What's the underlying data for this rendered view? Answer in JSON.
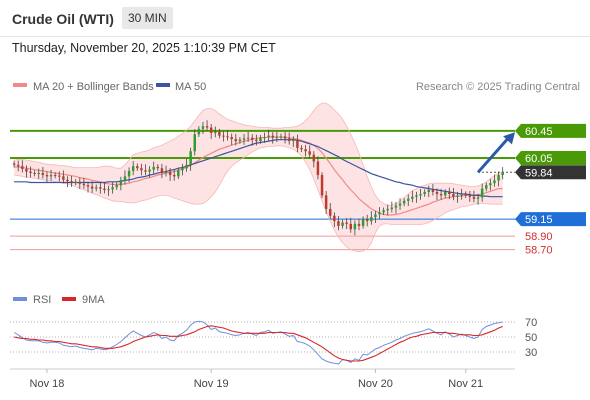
{
  "header": {
    "title": "Crude Oil (WTI)",
    "interval": "30 MIN",
    "datetime": "Thursday, November 20, 2025 1:10:39 PM CET"
  },
  "legend": {
    "ma20_bb": "MA 20 + Bollinger Bands",
    "ma50": "MA 50",
    "credit": "Research © 2025 Trading Central",
    "rsi": "RSI",
    "rsi_ma": "9MA"
  },
  "colors": {
    "bull": "#2e9b2e",
    "bear": "#c0392b",
    "ma20": "#f08a8a",
    "ma50": "#3b55a0",
    "band_fill": "#fde3e3",
    "resistance": "#4a9a08",
    "pivot": "#1f6fd6",
    "support": "#f29a9a",
    "support_text": "#d03030",
    "last_price_bg": "#333333",
    "arrow": "#2a5aa8",
    "rsi_line": "#6f8fd8",
    "rsi_ma_line": "#d62828"
  },
  "chart_data": [
    {
      "type": "candlestick",
      "ylim": [
        58.4,
        60.95
      ],
      "xlim": [
        -1,
        122
      ],
      "grid": false,
      "x_ticks": [
        {
          "label": "Nov 18",
          "index": 8
        },
        {
          "label": "Nov 19",
          "index": 48
        },
        {
          "label": "Nov 20",
          "index": 88
        },
        {
          "label": "Nov 21",
          "index": 110
        }
      ],
      "close": [
        59.95,
        59.93,
        59.89,
        59.85,
        59.83,
        59.82,
        59.83,
        59.8,
        59.78,
        59.8,
        59.79,
        59.78,
        59.73,
        59.71,
        59.69,
        59.7,
        59.67,
        59.65,
        59.63,
        59.6,
        59.62,
        59.6,
        59.58,
        59.59,
        59.62,
        59.65,
        59.71,
        59.78,
        59.86,
        59.93,
        59.9,
        59.87,
        59.85,
        59.88,
        59.92,
        59.9,
        59.83,
        59.85,
        59.8,
        59.78,
        59.87,
        59.9,
        59.95,
        60.15,
        60.4,
        60.48,
        60.52,
        60.5,
        60.42,
        60.44,
        60.38,
        60.37,
        60.36,
        60.33,
        60.3,
        60.32,
        60.34,
        60.35,
        60.32,
        60.3,
        60.35,
        60.36,
        60.38,
        60.35,
        60.36,
        60.37,
        60.34,
        60.3,
        60.32,
        60.2,
        60.18,
        60.15,
        60.1,
        60.0,
        59.8,
        59.5,
        59.3,
        59.2,
        59.12,
        59.05,
        59.1,
        59.08,
        59.0,
        59.08,
        59.05,
        59.15,
        59.12,
        59.18,
        59.22,
        59.25,
        59.28,
        59.3,
        59.32,
        59.35,
        59.38,
        59.42,
        59.45,
        59.48,
        59.5,
        59.52,
        59.55,
        59.58,
        59.55,
        59.52,
        59.5,
        59.55,
        59.52,
        59.48,
        59.5,
        59.52,
        59.5,
        59.48,
        59.45,
        59.47,
        59.6,
        59.65,
        59.68,
        59.72,
        59.8,
        59.84
      ],
      "ma20": [
        59.92,
        59.92,
        59.91,
        59.9,
        59.89,
        59.88,
        59.87,
        59.86,
        59.85,
        59.84,
        59.83,
        59.82,
        59.81,
        59.8,
        59.79,
        59.78,
        59.76,
        59.75,
        59.74,
        59.72,
        59.71,
        59.7,
        59.68,
        59.67,
        59.66,
        59.66,
        59.66,
        59.67,
        59.68,
        59.7,
        59.71,
        59.73,
        59.75,
        59.76,
        59.78,
        59.8,
        59.81,
        59.83,
        59.84,
        59.85,
        59.87,
        59.89,
        59.91,
        59.94,
        59.98,
        60.02,
        60.06,
        60.09,
        60.12,
        60.15,
        60.18,
        60.2,
        60.22,
        60.24,
        60.26,
        60.28,
        60.3,
        60.31,
        60.33,
        60.34,
        60.35,
        60.35,
        60.36,
        60.36,
        60.36,
        60.36,
        60.35,
        60.35,
        60.34,
        60.33,
        60.31,
        60.29,
        60.27,
        60.24,
        60.19,
        60.13,
        60.05,
        59.97,
        59.88,
        59.8,
        59.73,
        59.65,
        59.58,
        59.52,
        59.45,
        59.4,
        59.35,
        59.3,
        59.27,
        59.24,
        59.22,
        59.21,
        59.21,
        59.22,
        59.23,
        59.25,
        59.27,
        59.29,
        59.31,
        59.33,
        59.35,
        59.37,
        59.4,
        59.42,
        59.44,
        59.46,
        59.47,
        59.48,
        59.49,
        59.49,
        59.5,
        59.5,
        59.5,
        59.51,
        59.52,
        59.54,
        59.56,
        59.58,
        59.6,
        59.6
      ],
      "bb_upper": [
        60.02,
        60.03,
        60.03,
        60.02,
        60.01,
        60.0,
        59.99,
        59.97,
        59.96,
        59.95,
        59.95,
        59.94,
        59.94,
        59.93,
        59.92,
        59.91,
        59.91,
        59.91,
        59.91,
        59.91,
        59.91,
        59.92,
        59.93,
        59.93,
        59.92,
        59.9,
        59.9,
        59.95,
        60.02,
        60.1,
        60.12,
        60.14,
        60.15,
        60.17,
        60.2,
        60.22,
        60.24,
        60.27,
        60.3,
        60.33,
        60.37,
        60.41,
        60.46,
        60.52,
        60.6,
        60.68,
        60.75,
        60.78,
        60.78,
        60.75,
        60.7,
        60.66,
        60.62,
        60.6,
        60.58,
        60.56,
        60.54,
        60.53,
        60.52,
        60.51,
        60.5,
        60.5,
        60.5,
        60.49,
        60.49,
        60.49,
        60.5,
        60.5,
        60.51,
        60.52,
        60.55,
        60.6,
        60.67,
        60.75,
        60.82,
        60.86,
        60.86,
        60.82,
        60.76,
        60.7,
        60.62,
        60.52,
        60.4,
        60.27,
        60.12,
        59.95,
        59.78,
        59.62,
        59.5,
        59.42,
        59.38,
        59.35,
        59.36,
        59.38,
        59.42,
        59.47,
        59.52,
        59.57,
        59.6,
        59.63,
        59.65,
        59.67,
        59.68,
        59.68,
        59.68,
        59.68,
        59.68,
        59.67,
        59.66,
        59.65,
        59.64,
        59.63,
        59.63,
        59.64,
        59.66,
        59.7,
        59.75,
        59.79,
        59.83,
        59.84
      ],
      "bb_lower": [
        59.8,
        59.79,
        59.78,
        59.77,
        59.76,
        59.75,
        59.74,
        59.73,
        59.72,
        59.71,
        59.7,
        59.69,
        59.68,
        59.67,
        59.65,
        59.63,
        59.6,
        59.58,
        59.56,
        59.53,
        59.51,
        59.49,
        59.46,
        59.44,
        59.42,
        59.41,
        59.41,
        59.4,
        59.39,
        59.39,
        59.4,
        59.42,
        59.43,
        59.45,
        59.47,
        59.49,
        59.5,
        59.5,
        59.49,
        59.46,
        59.44,
        59.42,
        59.4,
        59.38,
        59.37,
        59.37,
        59.38,
        59.42,
        59.48,
        59.55,
        59.65,
        59.76,
        59.86,
        59.93,
        59.98,
        60.02,
        60.06,
        60.1,
        60.14,
        60.17,
        60.2,
        60.21,
        60.22,
        60.22,
        60.23,
        60.23,
        60.22,
        60.2,
        60.18,
        60.14,
        60.08,
        59.99,
        59.88,
        59.74,
        59.58,
        59.42,
        59.26,
        59.12,
        58.99,
        58.88,
        58.8,
        58.74,
        58.7,
        58.68,
        58.67,
        58.68,
        58.71,
        58.8,
        58.95,
        59.05,
        59.08,
        59.08,
        59.07,
        59.07,
        59.07,
        59.07,
        59.07,
        59.07,
        59.07,
        59.07,
        59.08,
        59.1,
        59.13,
        59.17,
        59.2,
        59.24,
        59.27,
        59.29,
        59.31,
        59.33,
        59.34,
        59.35,
        59.37,
        59.38,
        59.38,
        59.38,
        59.37,
        59.37,
        59.37,
        59.37
      ],
      "ma50": [
        59.7,
        59.7,
        59.7,
        59.7,
        59.69,
        59.69,
        59.69,
        59.69,
        59.69,
        59.69,
        59.69,
        59.69,
        59.69,
        59.69,
        59.69,
        59.69,
        59.69,
        59.69,
        59.69,
        59.69,
        59.69,
        59.69,
        59.69,
        59.7,
        59.7,
        59.7,
        59.71,
        59.72,
        59.73,
        59.74,
        59.76,
        59.77,
        59.78,
        59.8,
        59.81,
        59.83,
        59.84,
        59.85,
        59.87,
        59.88,
        59.9,
        59.91,
        59.93,
        59.95,
        59.97,
        59.99,
        60.01,
        60.03,
        60.05,
        60.07,
        60.09,
        60.11,
        60.13,
        60.15,
        60.17,
        60.19,
        60.21,
        60.23,
        60.25,
        60.27,
        60.28,
        60.29,
        60.3,
        60.31,
        60.32,
        60.32,
        60.32,
        60.32,
        60.32,
        60.31,
        60.3,
        60.28,
        60.26,
        60.24,
        60.22,
        60.19,
        60.16,
        60.13,
        60.1,
        60.07,
        60.03,
        60.0,
        59.97,
        59.94,
        59.91,
        59.88,
        59.85,
        59.82,
        59.8,
        59.78,
        59.76,
        59.74,
        59.72,
        59.7,
        59.69,
        59.67,
        59.66,
        59.65,
        59.63,
        59.62,
        59.61,
        59.6,
        59.59,
        59.58,
        59.57,
        59.56,
        59.55,
        59.54,
        59.53,
        59.52,
        59.52,
        59.51,
        59.5,
        59.5,
        59.49,
        59.49,
        59.48,
        59.48,
        59.48,
        59.48
      ],
      "levels": [
        {
          "value": 60.45,
          "label": "60.45",
          "kind": "resistance"
        },
        {
          "value": 60.05,
          "label": "60.05",
          "kind": "resistance"
        },
        {
          "value": 59.84,
          "label": "59.84",
          "kind": "last"
        },
        {
          "value": 59.15,
          "label": "59.15",
          "kind": "pivot"
        },
        {
          "value": 58.9,
          "label": "58.90",
          "kind": "support"
        },
        {
          "value": 58.7,
          "label": "58.70",
          "kind": "support"
        }
      ],
      "arrow": {
        "from": [
          113,
          59.84
        ],
        "to": [
          122,
          60.43
        ]
      }
    },
    {
      "type": "line",
      "ylim": [
        10,
        90
      ],
      "y_ticks": [
        30,
        50,
        70
      ],
      "reference_lines": [
        30,
        50,
        70
      ],
      "rsi": [
        56,
        53,
        49,
        46,
        45,
        45,
        45,
        43,
        42,
        43,
        43,
        42,
        39,
        38,
        37,
        38,
        36,
        35,
        34,
        33,
        35,
        34,
        33,
        34,
        37,
        40,
        44,
        49,
        54,
        58,
        55,
        52,
        50,
        53,
        56,
        54,
        48,
        50,
        46,
        45,
        52,
        55,
        59,
        66,
        70,
        71,
        70,
        66,
        60,
        62,
        57,
        56,
        55,
        53,
        52,
        53,
        55,
        56,
        54,
        52,
        56,
        57,
        59,
        55,
        56,
        57,
        54,
        51,
        52,
        44,
        43,
        41,
        38,
        33,
        27,
        21,
        18,
        16,
        15,
        14,
        20,
        19,
        16,
        21,
        19,
        27,
        26,
        30,
        34,
        36,
        39,
        41,
        43,
        46,
        48,
        51,
        53,
        55,
        56,
        57,
        59,
        61,
        58,
        55,
        53,
        57,
        54,
        50,
        52,
        54,
        52,
        50,
        48,
        50,
        60,
        64,
        66,
        68,
        69,
        70
      ],
      "rsi_ma": [
        50,
        49,
        48,
        48,
        47,
        47,
        46,
        46,
        45,
        45,
        44,
        44,
        43,
        42,
        41,
        41,
        40,
        39,
        38,
        37,
        37,
        36,
        35,
        35,
        35,
        36,
        37,
        39,
        41,
        44,
        46,
        48,
        50,
        51,
        52,
        53,
        52,
        52,
        51,
        51,
        51,
        52,
        53,
        55,
        57,
        60,
        62,
        64,
        65,
        64,
        63,
        62,
        60,
        58,
        57,
        56,
        55,
        55,
        55,
        55,
        55,
        55,
        56,
        56,
        56,
        56,
        56,
        55,
        55,
        53,
        51,
        49,
        46,
        43,
        40,
        37,
        33,
        29,
        25,
        22,
        20,
        19,
        18,
        18,
        18,
        19,
        21,
        23,
        25,
        28,
        31,
        34,
        37,
        40,
        43,
        45,
        48,
        50,
        51,
        53,
        54,
        55,
        56,
        56,
        56,
        56,
        55,
        55,
        54,
        53,
        53,
        53,
        52,
        52,
        53,
        55,
        57,
        59,
        62,
        64
      ]
    }
  ]
}
